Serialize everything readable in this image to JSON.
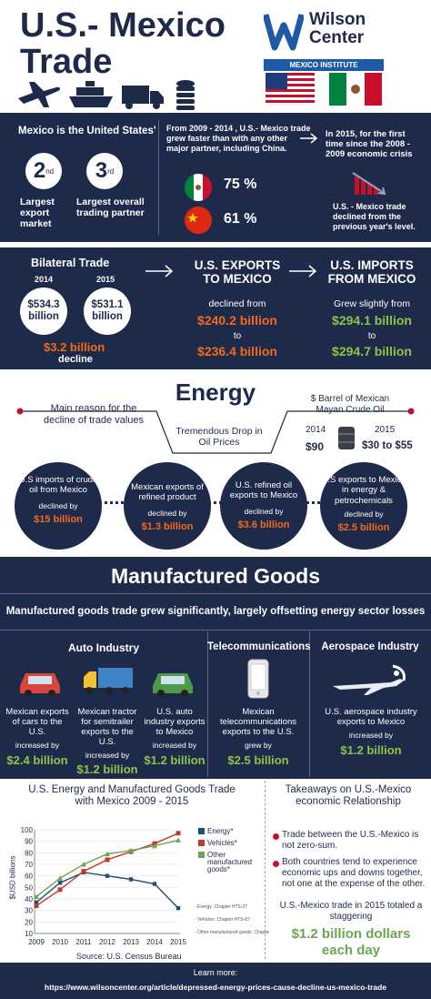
{
  "header": {
    "title_line1": "U.S.- Mexico",
    "title_line2": "Trade",
    "logo_line1": "Wilson",
    "logo_line2": "Center",
    "logo_band": "MEXICO INSTITUTE"
  },
  "partner": {
    "heading": "Mexico is the United States'",
    "rank1": "2",
    "rank1_sup": "nd",
    "rank1_label": "Largest export market",
    "rank2": "3",
    "rank2_sup": "rd",
    "rank2_label": "Largest overall trading partner",
    "growth_text": "From 2009 - 2014 , U.S.- Mexico trade grew faster than with any other major partner, including China.",
    "mexico_pct": "75 %",
    "china_pct": "61 %",
    "decline_text": "In 2015, for the first time since the 2008 - 2009 economic crisis",
    "decline_sub": "U.S. - Mexico trade declined from the previous year's level."
  },
  "bilateral": {
    "heading": "Bilateral Trade",
    "y2014": "2014",
    "y2015": "2015",
    "v2014": "$534.3 billion",
    "v2015": "$531.1 billion",
    "decline_value": "$3.2 billion",
    "decline_word": "decline",
    "exports_title": "U.S. EXPORTS TO MEXICO",
    "exports_sub": "declined from",
    "exports_from": "$240.2 billion",
    "exports_to_word": "to",
    "exports_to": "$236.4 billion",
    "imports_title": "U.S. IMPORTS FROM MEXICO",
    "imports_sub": "Grew slightly from",
    "imports_from": "$294.1 billion",
    "imports_to_word": "to",
    "imports_to": "$294.7 billion"
  },
  "energy": {
    "heading": "Energy",
    "reason": "Main reason for the decline of trade values",
    "drop": "Tremendous Drop in Oil Prices",
    "barrel_title": "$ Barrel of Mexican Mayan Crude Oil",
    "y2014": "2014",
    "y2015": "2015",
    "p2014": "$90",
    "p2015": "$30 to $55",
    "items": [
      {
        "label": "U.S imports of crude oil from Mexico",
        "sub": "declined by",
        "value": "$15 billion"
      },
      {
        "label": "Mexican exports of refined product",
        "sub": "declined by",
        "value": "$1.3 billion"
      },
      {
        "label": "U.S. refined oil exports to Mexico",
        "sub": "declined by",
        "value": "$3.6 billion"
      },
      {
        "label": "U.S exports to Mexico in energy & petrochemicals",
        "sub": "declined by",
        "value": "$2.5 billion"
      }
    ]
  },
  "mfg": {
    "heading": "Manufactured Goods",
    "sub": "Manufactured goods trade grew significantly, largely offsetting energy sector losses",
    "auto_title": "Auto Industry",
    "telecom_title": "Telecommunications",
    "aero_title": "Aerospace Industry",
    "items": [
      {
        "label": "Mexican exports of cars to the U.S.",
        "sub": "increased by",
        "value": "$2.4 billion"
      },
      {
        "label": "Mexican tractor for semitrailer exports to the U.S.",
        "sub": "increased by",
        "value": "$1.2 billion"
      },
      {
        "label": "U.S. auto industry exports to Mexico",
        "sub": "increased by",
        "value": "$1.2 billion"
      },
      {
        "label": "Mexican telecommunications exports to the U.S.",
        "sub": "grew by",
        "value": "$2.5 billion"
      },
      {
        "label": "U.S. aerospace industry exports to Mexico",
        "sub": "increased by",
        "value": "$1.2 billion"
      }
    ]
  },
  "chart_data": {
    "type": "line",
    "title": "U.S. Energy and Manufactured Goods Trade with Mexico 2009 - 2015",
    "ylabel": "$USD billions",
    "source": "Source: U.S. Census Bureau",
    "x": [
      "2009",
      "2010",
      "2011",
      "2012",
      "2013",
      "2014",
      "2015"
    ],
    "ylim": [
      10,
      100
    ],
    "yticks": [
      "10",
      "20",
      "30",
      "40",
      "50",
      "60",
      "70",
      "80",
      "90",
      "100"
    ],
    "series": [
      {
        "name": "Energy*",
        "color": "#1f4e79",
        "values": [
          37,
          54,
          63,
          60,
          57,
          53,
          32
        ]
      },
      {
        "name": "Vehicles*",
        "color": "#c0392b",
        "values": [
          34,
          48,
          64,
          74,
          81,
          88,
          97
        ]
      },
      {
        "name": "Other manufactured goods*",
        "color": "#6aa84f",
        "values": [
          42,
          58,
          70,
          79,
          82,
          86,
          91
        ]
      }
    ],
    "notes": [
      "- Energy: Chapter HTS-27",
      "- Vehicles: Chapter HTS-87",
      "- Other manufactured goods: Chapter HTS-84"
    ]
  },
  "takeaways": {
    "title": "Takeaways on U.S.-Mexico economic Relationship",
    "point1": "Trade between the U.S.-Mexico is not zero-sum.",
    "point2": "Both countries tend to experience economic ups and downs together, not one at the expense of the other.",
    "total_intro": "U.S.-Mexico trade in 2015 totaled a staggering",
    "total_value": "$1.2 billion dollars each day"
  },
  "footer": {
    "learn": "Learn more:",
    "url": "https://www.wilsoncenter.org/article/depressed-energy-prices-cause-decline-us-mexico-trade"
  },
  "colors": {
    "navy": "#1e2a4a",
    "orange": "#f26a1b",
    "green": "#8fc24a",
    "red": "#c8102e"
  }
}
